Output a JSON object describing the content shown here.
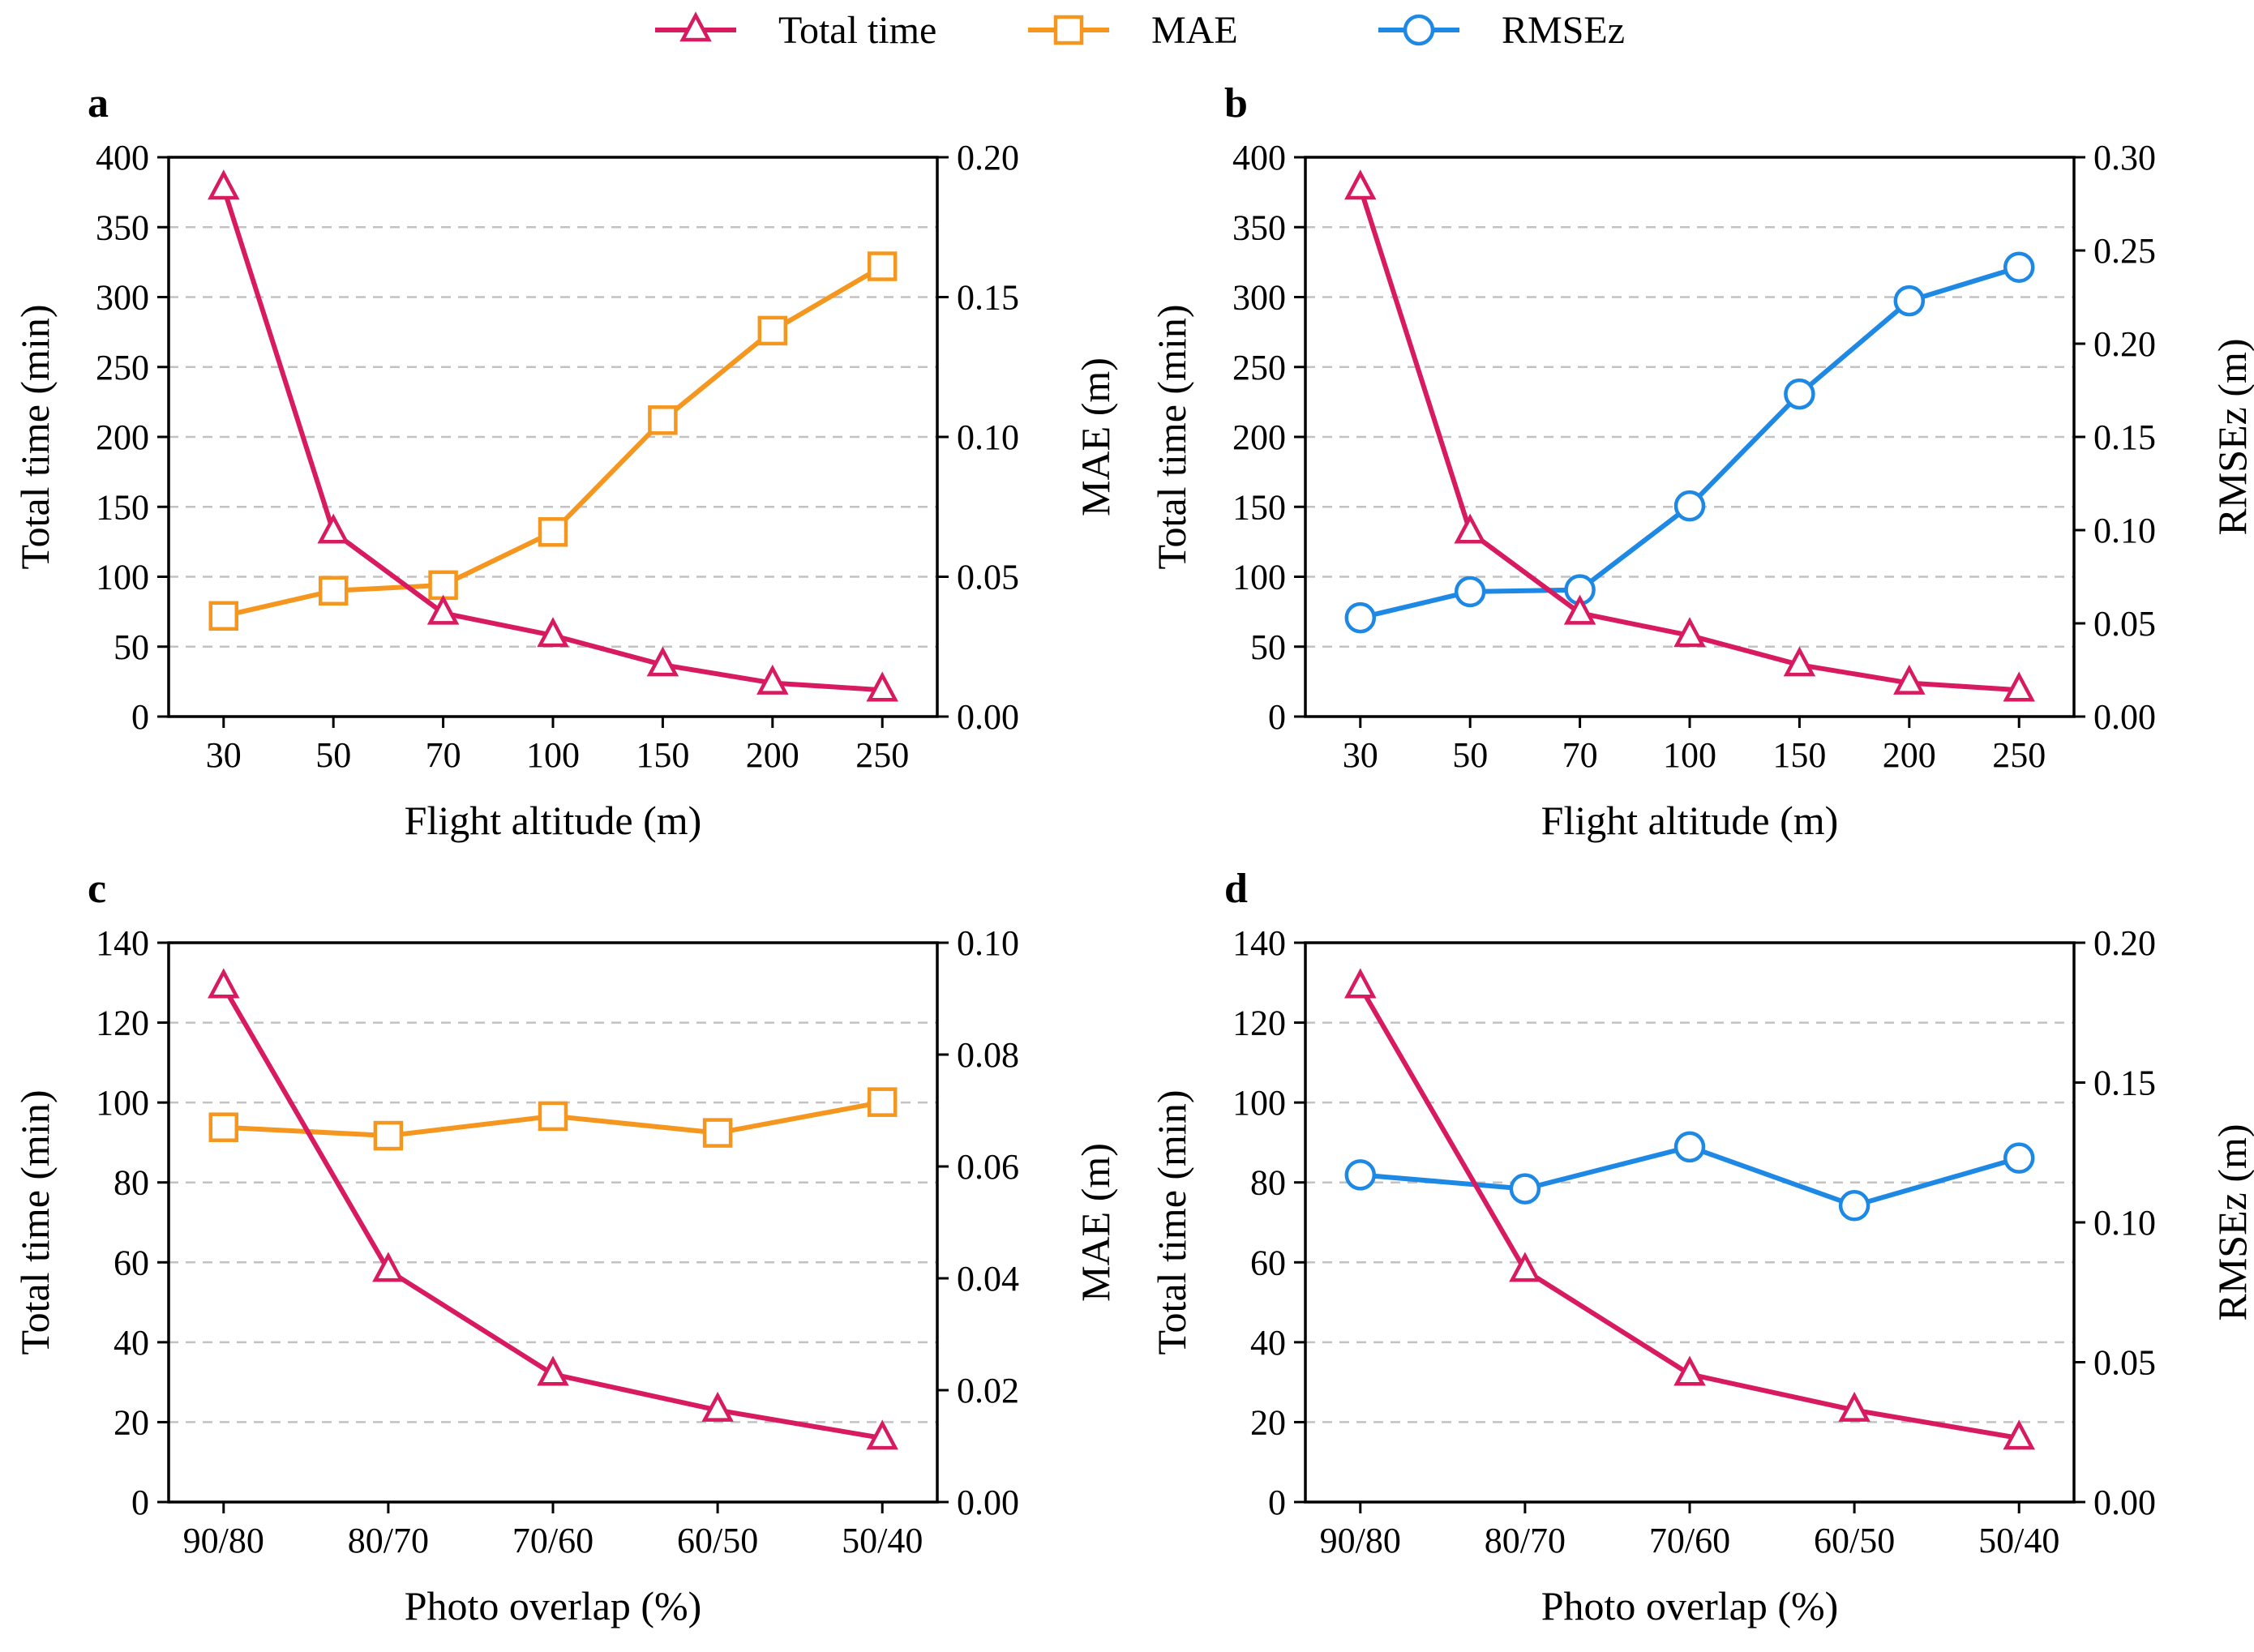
{
  "colors": {
    "total_time": "#d81b60",
    "mae": "#f5961e",
    "rmse": "#1e88e5"
  },
  "legend": [
    {
      "label": "Total time",
      "marker": "triangle",
      "color_key": "total_time"
    },
    {
      "label": "MAE",
      "marker": "square",
      "color_key": "mae"
    },
    {
      "label": "RMSEz",
      "marker": "circle",
      "color_key": "rmse"
    }
  ],
  "chart_data": [
    {
      "panel": "a",
      "type": "line",
      "xlabel": "Flight altitude (m)",
      "ylabel_left": "Total time (min)",
      "ylabel_right": "MAE (m)",
      "categories": [
        "30",
        "50",
        "70",
        "100",
        "150",
        "200",
        "250"
      ],
      "ylim_left": [
        0,
        400
      ],
      "yticks_left": [
        0,
        50,
        100,
        150,
        200,
        250,
        300,
        350,
        400
      ],
      "ylim_right": [
        0,
        0.2
      ],
      "yticks_right": [
        "0.00",
        "0.05",
        "0.10",
        "0.15",
        "0.20"
      ],
      "grid": true,
      "series": [
        {
          "name": "Total time",
          "axis": "left",
          "marker": "triangle",
          "color_key": "total_time",
          "values": [
            378,
            132,
            74,
            58,
            37,
            24,
            19
          ]
        },
        {
          "name": "MAE",
          "axis": "right",
          "marker": "square",
          "color_key": "mae",
          "values": [
            0.036,
            0.045,
            0.047,
            0.066,
            0.106,
            0.138,
            0.161
          ]
        }
      ]
    },
    {
      "panel": "b",
      "type": "line",
      "xlabel": "Flight altitude (m)",
      "ylabel_left": "Total time (min)",
      "ylabel_right": "RMSEz (m)",
      "categories": [
        "30",
        "50",
        "70",
        "100",
        "150",
        "200",
        "250"
      ],
      "ylim_left": [
        0,
        400
      ],
      "yticks_left": [
        0,
        50,
        100,
        150,
        200,
        250,
        300,
        350,
        400
      ],
      "ylim_right": [
        0,
        0.3
      ],
      "yticks_right": [
        "0.00",
        "0.05",
        "0.10",
        "0.15",
        "0.20",
        "0.25",
        "0.30"
      ],
      "grid": true,
      "series": [
        {
          "name": "Total time",
          "axis": "left",
          "marker": "triangle",
          "color_key": "total_time",
          "values": [
            378,
            132,
            74,
            58,
            37,
            24,
            19
          ]
        },
        {
          "name": "RMSEz",
          "axis": "right",
          "marker": "circle",
          "color_key": "rmse",
          "values": [
            0.053,
            0.067,
            0.068,
            0.113,
            0.173,
            0.223,
            0.241
          ]
        }
      ]
    },
    {
      "panel": "c",
      "type": "line",
      "xlabel": "Photo overlap (%)",
      "ylabel_left": "Total time (min)",
      "ylabel_right": "MAE (m)",
      "categories": [
        "90/80",
        "80/70",
        "70/60",
        "60/50",
        "50/40"
      ],
      "ylim_left": [
        0,
        140
      ],
      "yticks_left": [
        0,
        20,
        40,
        60,
        80,
        100,
        120,
        140
      ],
      "ylim_right": [
        0,
        0.1
      ],
      "yticks_right": [
        "0.00",
        "0.02",
        "0.04",
        "0.06",
        "0.08",
        "0.10"
      ],
      "grid": true,
      "series": [
        {
          "name": "Total time",
          "axis": "left",
          "marker": "triangle",
          "color_key": "total_time",
          "values": [
            129,
            58,
            32,
            23,
            16
          ]
        },
        {
          "name": "MAE",
          "axis": "right",
          "marker": "square",
          "color_key": "mae",
          "values": [
            0.067,
            0.0655,
            0.069,
            0.066,
            0.0715
          ]
        }
      ]
    },
    {
      "panel": "d",
      "type": "line",
      "xlabel": "Photo overlap (%)",
      "ylabel_left": "Total time (min)",
      "ylabel_right": "RMSEz (m)",
      "categories": [
        "90/80",
        "80/70",
        "70/60",
        "60/50",
        "50/40"
      ],
      "ylim_left": [
        0,
        140
      ],
      "yticks_left": [
        0,
        20,
        40,
        60,
        80,
        100,
        120,
        140
      ],
      "ylim_right": [
        0,
        0.2
      ],
      "yticks_right": [
        "0.00",
        "0.05",
        "0.10",
        "0.15",
        "0.20"
      ],
      "grid": true,
      "series": [
        {
          "name": "Total time",
          "axis": "left",
          "marker": "triangle",
          "color_key": "total_time",
          "values": [
            129,
            58,
            32,
            23,
            16
          ]
        },
        {
          "name": "RMSEz",
          "axis": "right",
          "marker": "circle",
          "color_key": "rmse",
          "values": [
            0.117,
            0.112,
            0.127,
            0.106,
            0.123
          ]
        }
      ]
    }
  ]
}
